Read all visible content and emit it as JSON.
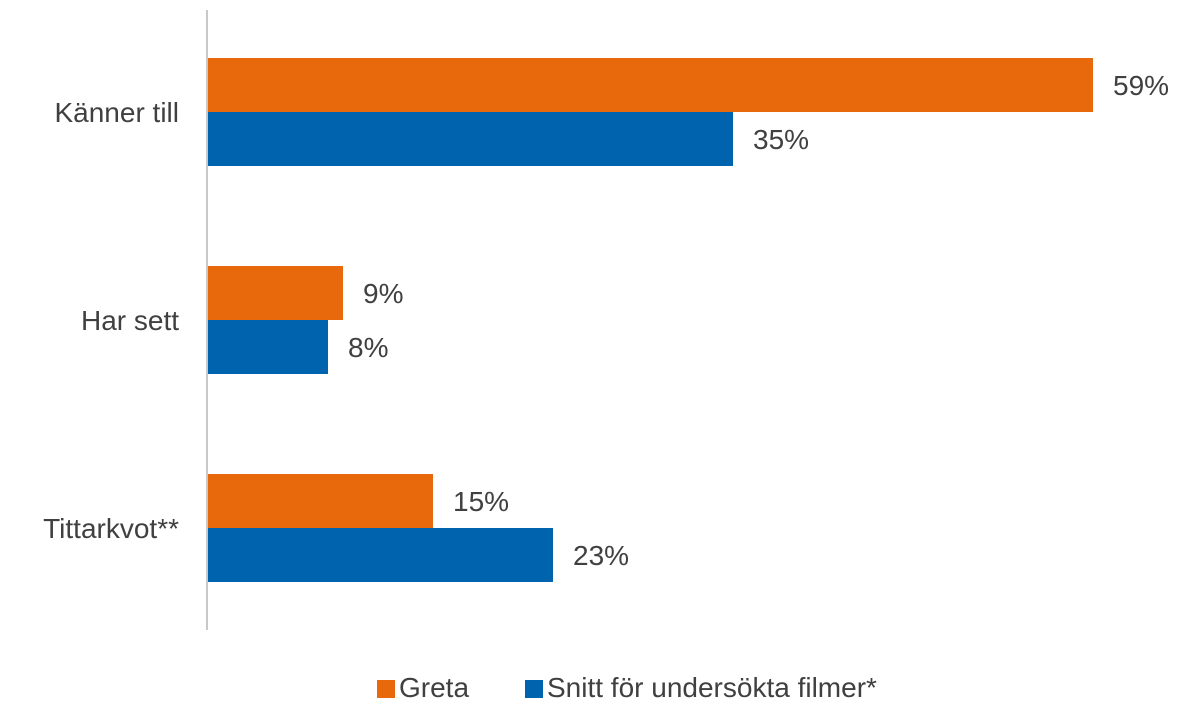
{
  "chart_data": {
    "type": "bar",
    "orientation": "horizontal",
    "categories": [
      "Känner till",
      "Har sett",
      "Tittarkvot**"
    ],
    "series": [
      {
        "name": "Greta",
        "values": [
          59,
          9,
          15
        ],
        "labels": [
          "59%",
          "9%",
          "15%"
        ],
        "color": "#E8690C"
      },
      {
        "name": "Snitt för undersökta filmer*",
        "values": [
          35,
          8,
          23
        ],
        "labels": [
          "35%",
          "8%",
          "23%"
        ],
        "color": "#0063AE"
      }
    ],
    "xlim": [
      0,
      60
    ],
    "grid": false,
    "legend": "bottom",
    "axis_color": "#C8C8C8",
    "text_color": "#404040"
  }
}
